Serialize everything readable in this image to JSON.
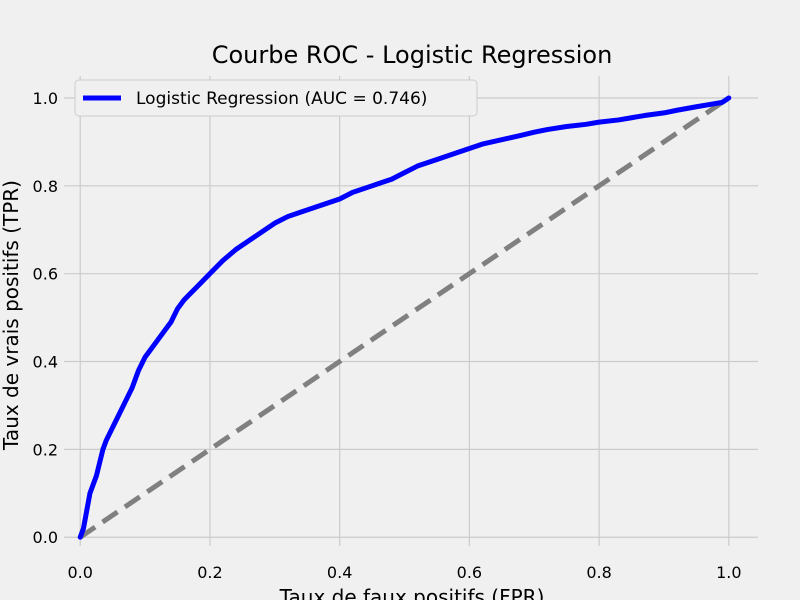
{
  "chart_data": {
    "type": "line",
    "title": "Courbe ROC - Logistic Regression",
    "xlabel": "Taux de faux positifs (FPR)",
    "ylabel": "Taux de vrais positifs (TPR)",
    "xlim": [
      -0.025,
      1.045
    ],
    "ylim": [
      -0.02,
      1.05
    ],
    "x_ticks": [
      "0.0",
      "0.2",
      "0.4",
      "0.6",
      "0.8",
      "1.0"
    ],
    "y_ticks": [
      "0.0",
      "0.2",
      "0.4",
      "0.6",
      "0.8",
      "1.0"
    ],
    "grid": true,
    "legend_position": "upper-left",
    "series": [
      {
        "name": "Logistic Regression (AUC = 0.746)",
        "color": "#0000ff",
        "style": "solid",
        "x": [
          0.0,
          0.005,
          0.01,
          0.015,
          0.02,
          0.025,
          0.03,
          0.035,
          0.04,
          0.05,
          0.06,
          0.07,
          0.08,
          0.09,
          0.1,
          0.11,
          0.12,
          0.13,
          0.14,
          0.15,
          0.16,
          0.17,
          0.18,
          0.2,
          0.22,
          0.24,
          0.26,
          0.28,
          0.3,
          0.32,
          0.34,
          0.36,
          0.38,
          0.4,
          0.42,
          0.45,
          0.48,
          0.5,
          0.52,
          0.55,
          0.58,
          0.6,
          0.62,
          0.65,
          0.68,
          0.7,
          0.72,
          0.75,
          0.78,
          0.8,
          0.83,
          0.85,
          0.87,
          0.9,
          0.92,
          0.95,
          0.97,
          0.99,
          1.0
        ],
        "y": [
          0.0,
          0.02,
          0.06,
          0.1,
          0.12,
          0.14,
          0.17,
          0.2,
          0.22,
          0.25,
          0.28,
          0.31,
          0.34,
          0.38,
          0.41,
          0.43,
          0.45,
          0.47,
          0.49,
          0.52,
          0.54,
          0.555,
          0.57,
          0.6,
          0.63,
          0.655,
          0.675,
          0.695,
          0.715,
          0.73,
          0.74,
          0.75,
          0.76,
          0.77,
          0.785,
          0.8,
          0.815,
          0.83,
          0.845,
          0.86,
          0.875,
          0.885,
          0.895,
          0.905,
          0.915,
          0.922,
          0.928,
          0.935,
          0.94,
          0.945,
          0.95,
          0.955,
          0.96,
          0.966,
          0.972,
          0.98,
          0.985,
          0.99,
          1.0
        ]
      },
      {
        "name": "",
        "color": "#808080",
        "style": "dashed",
        "x": [
          0.0,
          1.0
        ],
        "y": [
          0.0,
          1.0
        ]
      }
    ]
  }
}
